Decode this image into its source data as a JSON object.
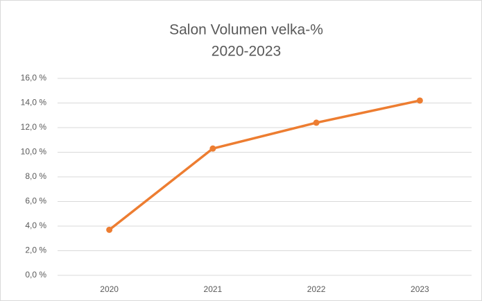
{
  "chart_data": {
    "type": "line",
    "title": [
      "Salon Volumen velka-%",
      "2020-2023"
    ],
    "categories": [
      "2020",
      "2021",
      "2022",
      "2023"
    ],
    "series": [
      {
        "name": "Salon Volumen velka-%",
        "color": "#ED7D31",
        "values": [
          3.7,
          10.3,
          12.4,
          14.2
        ]
      }
    ],
    "ylim": [
      0,
      16
    ],
    "yticks": [
      {
        "value": 0,
        "label": "0,0 %"
      },
      {
        "value": 2,
        "label": "2,0 %"
      },
      {
        "value": 4,
        "label": "4,0 %"
      },
      {
        "value": 6,
        "label": "6,0 %"
      },
      {
        "value": 8,
        "label": "8,0 %"
      },
      {
        "value": 10,
        "label": "10,0 %"
      },
      {
        "value": 12,
        "label": "12,0 %"
      },
      {
        "value": 14,
        "label": "14,0 %"
      },
      {
        "value": 16,
        "label": "16,0 %"
      }
    ],
    "grid": true
  }
}
